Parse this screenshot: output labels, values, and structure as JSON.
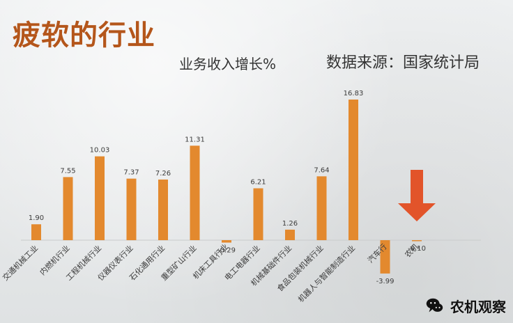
{
  "header": {
    "title": "疲软的行业",
    "subtitle": "业务收入增长%",
    "source": "数据来源：国家统计局"
  },
  "brand": {
    "name": "农机观察",
    "icon": "wechat-icon"
  },
  "colors": {
    "bar": "#e3892e",
    "highlight_arrow": "#e2542a",
    "title": "#b4561b"
  },
  "chart_data": {
    "type": "bar",
    "categories": [
      "交通机械工业",
      "内燃机行业",
      "工程机械行业",
      "仪器仪表行业",
      "石化通用行业",
      "重型矿山行业",
      "机床工具行业",
      "电工电器行业",
      "机械基础件行业",
      "食品包装机械行业",
      "机器人与智能制造行业",
      "汽车行",
      "农机"
    ],
    "values": [
      1.9,
      7.55,
      10.03,
      7.37,
      7.26,
      11.31,
      -0.29,
      6.21,
      1.26,
      7.64,
      16.83,
      -3.99,
      -0.1
    ],
    "value_labels": [
      "1.90",
      "7.55",
      "10.03",
      "7.37",
      "7.26",
      "11.31",
      "-0.29",
      "6.21",
      "1.26",
      "7.64",
      "16.83",
      "-3.99",
      "-0.10"
    ],
    "title": "业务收入增长%",
    "xlabel": "",
    "ylabel": "",
    "ylim": [
      -4.5,
      18
    ],
    "grid": false,
    "annotations": [
      {
        "type": "arrow",
        "target_category": "农机",
        "direction": "down"
      }
    ]
  }
}
